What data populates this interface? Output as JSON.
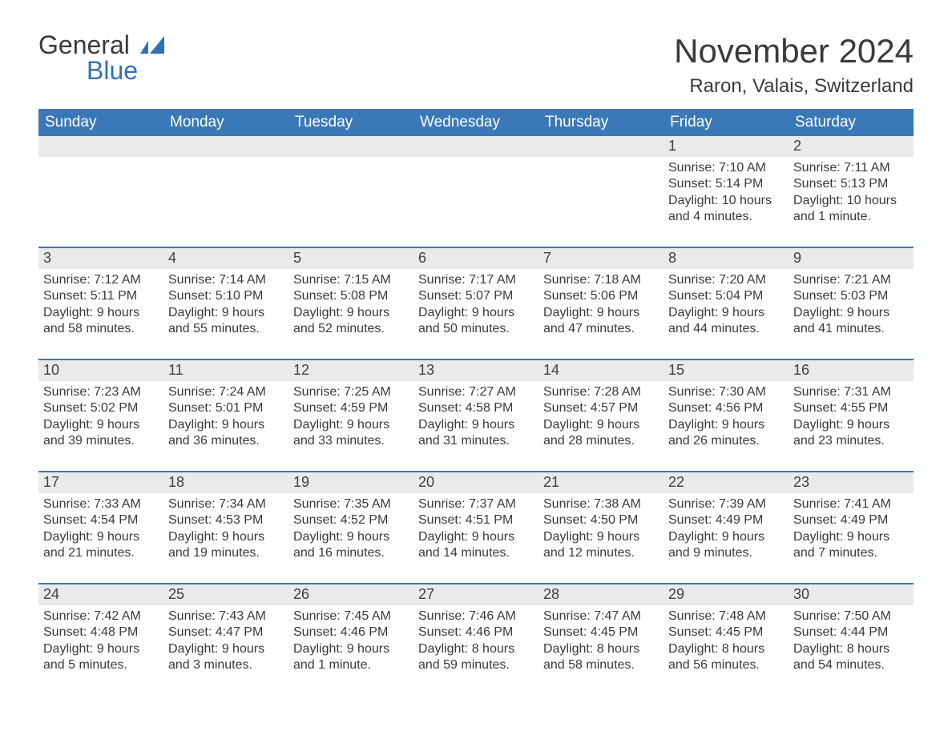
{
  "brand": {
    "line1": "General",
    "line2": "Blue"
  },
  "title": "November 2024",
  "location": "Raron, Valais, Switzerland",
  "colors": {
    "header_bg": "#3a78b8",
    "header_text": "#ffffff",
    "daynum_bg": "#eaeaea",
    "week_border": "#3a78b8",
    "brand_blue": "#2f72b9",
    "body_text": "#3a3a3a"
  },
  "daysOfWeek": [
    "Sunday",
    "Monday",
    "Tuesday",
    "Wednesday",
    "Thursday",
    "Friday",
    "Saturday"
  ],
  "weeks": [
    [
      null,
      null,
      null,
      null,
      null,
      {
        "n": "1",
        "sunrise": "7:10 AM",
        "sunset": "5:14 PM",
        "daylight": "10 hours and 4 minutes."
      },
      {
        "n": "2",
        "sunrise": "7:11 AM",
        "sunset": "5:13 PM",
        "daylight": "10 hours and 1 minute."
      }
    ],
    [
      {
        "n": "3",
        "sunrise": "7:12 AM",
        "sunset": "5:11 PM",
        "daylight": "9 hours and 58 minutes."
      },
      {
        "n": "4",
        "sunrise": "7:14 AM",
        "sunset": "5:10 PM",
        "daylight": "9 hours and 55 minutes."
      },
      {
        "n": "5",
        "sunrise": "7:15 AM",
        "sunset": "5:08 PM",
        "daylight": "9 hours and 52 minutes."
      },
      {
        "n": "6",
        "sunrise": "7:17 AM",
        "sunset": "5:07 PM",
        "daylight": "9 hours and 50 minutes."
      },
      {
        "n": "7",
        "sunrise": "7:18 AM",
        "sunset": "5:06 PM",
        "daylight": "9 hours and 47 minutes."
      },
      {
        "n": "8",
        "sunrise": "7:20 AM",
        "sunset": "5:04 PM",
        "daylight": "9 hours and 44 minutes."
      },
      {
        "n": "9",
        "sunrise": "7:21 AM",
        "sunset": "5:03 PM",
        "daylight": "9 hours and 41 minutes."
      }
    ],
    [
      {
        "n": "10",
        "sunrise": "7:23 AM",
        "sunset": "5:02 PM",
        "daylight": "9 hours and 39 minutes."
      },
      {
        "n": "11",
        "sunrise": "7:24 AM",
        "sunset": "5:01 PM",
        "daylight": "9 hours and 36 minutes."
      },
      {
        "n": "12",
        "sunrise": "7:25 AM",
        "sunset": "4:59 PM",
        "daylight": "9 hours and 33 minutes."
      },
      {
        "n": "13",
        "sunrise": "7:27 AM",
        "sunset": "4:58 PM",
        "daylight": "9 hours and 31 minutes."
      },
      {
        "n": "14",
        "sunrise": "7:28 AM",
        "sunset": "4:57 PM",
        "daylight": "9 hours and 28 minutes."
      },
      {
        "n": "15",
        "sunrise": "7:30 AM",
        "sunset": "4:56 PM",
        "daylight": "9 hours and 26 minutes."
      },
      {
        "n": "16",
        "sunrise": "7:31 AM",
        "sunset": "4:55 PM",
        "daylight": "9 hours and 23 minutes."
      }
    ],
    [
      {
        "n": "17",
        "sunrise": "7:33 AM",
        "sunset": "4:54 PM",
        "daylight": "9 hours and 21 minutes."
      },
      {
        "n": "18",
        "sunrise": "7:34 AM",
        "sunset": "4:53 PM",
        "daylight": "9 hours and 19 minutes."
      },
      {
        "n": "19",
        "sunrise": "7:35 AM",
        "sunset": "4:52 PM",
        "daylight": "9 hours and 16 minutes."
      },
      {
        "n": "20",
        "sunrise": "7:37 AM",
        "sunset": "4:51 PM",
        "daylight": "9 hours and 14 minutes."
      },
      {
        "n": "21",
        "sunrise": "7:38 AM",
        "sunset": "4:50 PM",
        "daylight": "9 hours and 12 minutes."
      },
      {
        "n": "22",
        "sunrise": "7:39 AM",
        "sunset": "4:49 PM",
        "daylight": "9 hours and 9 minutes."
      },
      {
        "n": "23",
        "sunrise": "7:41 AM",
        "sunset": "4:49 PM",
        "daylight": "9 hours and 7 minutes."
      }
    ],
    [
      {
        "n": "24",
        "sunrise": "7:42 AM",
        "sunset": "4:48 PM",
        "daylight": "9 hours and 5 minutes."
      },
      {
        "n": "25",
        "sunrise": "7:43 AM",
        "sunset": "4:47 PM",
        "daylight": "9 hours and 3 minutes."
      },
      {
        "n": "26",
        "sunrise": "7:45 AM",
        "sunset": "4:46 PM",
        "daylight": "9 hours and 1 minute."
      },
      {
        "n": "27",
        "sunrise": "7:46 AM",
        "sunset": "4:46 PM",
        "daylight": "8 hours and 59 minutes."
      },
      {
        "n": "28",
        "sunrise": "7:47 AM",
        "sunset": "4:45 PM",
        "daylight": "8 hours and 58 minutes."
      },
      {
        "n": "29",
        "sunrise": "7:48 AM",
        "sunset": "4:45 PM",
        "daylight": "8 hours and 56 minutes."
      },
      {
        "n": "30",
        "sunrise": "7:50 AM",
        "sunset": "4:44 PM",
        "daylight": "8 hours and 54 minutes."
      }
    ]
  ],
  "labels": {
    "sunrise": "Sunrise: ",
    "sunset": "Sunset: ",
    "daylight": "Daylight: "
  }
}
